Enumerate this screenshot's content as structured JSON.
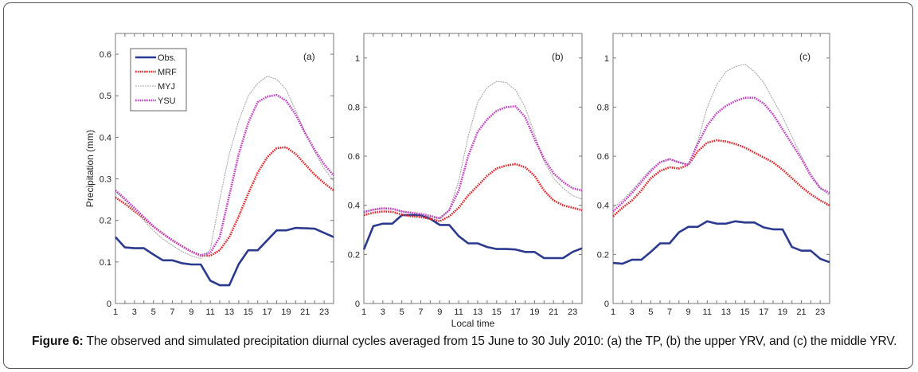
{
  "caption": {
    "label": "Figure 6:",
    "text": " The observed and simulated precipitation diurnal cycles averaged from 15 June to 30 July 2010: (a) the TP, (b) the upper YRV, and (c) the middle YRV."
  },
  "series_styles": {
    "Obs.": {
      "color": "#2b3a8f",
      "dash": "solid",
      "width": "thick"
    },
    "MRF": {
      "color": "#e0262b",
      "dash": "dotted",
      "width": "thick"
    },
    "MYJ": {
      "color": "#a8a8a8",
      "dash": "thin-dotted",
      "width": "thin"
    },
    "YSU": {
      "color": "#c040c0",
      "dash": "dotted",
      "width": "thick"
    }
  },
  "chart_data": [
    {
      "type": "line",
      "panel": "(a)",
      "title": "",
      "xlabel": "",
      "ylabel": "Precipitation (mm)",
      "xlim": [
        1,
        24
      ],
      "ylim": [
        0,
        0.65
      ],
      "xticks": [
        1,
        3,
        5,
        7,
        9,
        11,
        13,
        15,
        17,
        19,
        21,
        23
      ],
      "yticks": [
        0,
        0.1,
        0.2,
        0.3,
        0.4,
        0.5,
        0.6
      ],
      "ytick_labels": [
        "0",
        "0.1",
        "0.2",
        "0.3",
        "0.4",
        "0.5",
        "0.6"
      ],
      "legend": {
        "entries": [
          "Obs.",
          "MRF",
          "MYJ",
          "YSU"
        ],
        "position": "top-left"
      },
      "x": [
        1,
        2,
        3,
        4,
        5,
        6,
        7,
        8,
        9,
        10,
        11,
        12,
        13,
        14,
        15,
        16,
        17,
        18,
        19,
        20,
        21,
        22,
        23,
        24
      ],
      "series": [
        {
          "name": "Obs.",
          "values": [
            0.16,
            0.135,
            0.133,
            0.133,
            0.118,
            0.104,
            0.104,
            0.097,
            0.094,
            0.094,
            0.055,
            0.044,
            0.044,
            0.095,
            0.128,
            0.128,
            0.152,
            0.176,
            0.176,
            0.182,
            0.181,
            0.18,
            0.17,
            0.16
          ]
        },
        {
          "name": "MRF",
          "values": [
            0.255,
            0.24,
            0.222,
            0.205,
            0.185,
            0.168,
            0.152,
            0.138,
            0.125,
            0.115,
            0.115,
            0.128,
            0.16,
            0.21,
            0.265,
            0.315,
            0.352,
            0.374,
            0.376,
            0.36,
            0.335,
            0.31,
            0.29,
            0.272
          ]
        },
        {
          "name": "MYJ",
          "values": [
            0.27,
            0.248,
            0.225,
            0.2,
            0.175,
            0.155,
            0.14,
            0.125,
            0.115,
            0.108,
            0.13,
            0.25,
            0.36,
            0.44,
            0.5,
            0.53,
            0.547,
            0.54,
            0.515,
            0.465,
            0.41,
            0.365,
            0.325,
            0.295
          ]
        },
        {
          "name": "YSU",
          "values": [
            0.272,
            0.252,
            0.23,
            0.208,
            0.186,
            0.168,
            0.152,
            0.138,
            0.125,
            0.116,
            0.122,
            0.16,
            0.26,
            0.36,
            0.435,
            0.485,
            0.498,
            0.502,
            0.488,
            0.455,
            0.41,
            0.37,
            0.335,
            0.308
          ]
        }
      ]
    },
    {
      "type": "line",
      "panel": "(b)",
      "title": "",
      "xlabel": "Local time",
      "ylabel": "",
      "xlim": [
        1,
        24
      ],
      "ylim": [
        0,
        1.1
      ],
      "xticks": [
        1,
        3,
        5,
        7,
        9,
        11,
        13,
        15,
        17,
        19,
        21,
        23
      ],
      "yticks": [
        0,
        0.2,
        0.4,
        0.6,
        0.8,
        1
      ],
      "ytick_labels": [
        "0",
        "0.2",
        "0.4",
        "0.6",
        "0.8",
        "1"
      ],
      "x": [
        1,
        2,
        3,
        4,
        5,
        6,
        7,
        8,
        9,
        10,
        11,
        12,
        13,
        14,
        15,
        16,
        17,
        18,
        19,
        20,
        21,
        22,
        23,
        24
      ],
      "series": [
        {
          "name": "Obs.",
          "values": [
            0.22,
            0.315,
            0.325,
            0.325,
            0.36,
            0.36,
            0.36,
            0.345,
            0.32,
            0.32,
            0.275,
            0.245,
            0.245,
            0.23,
            0.222,
            0.222,
            0.22,
            0.21,
            0.21,
            0.185,
            0.185,
            0.185,
            0.21,
            0.225
          ]
        },
        {
          "name": "MRF",
          "values": [
            0.36,
            0.37,
            0.375,
            0.373,
            0.362,
            0.355,
            0.352,
            0.345,
            0.335,
            0.355,
            0.39,
            0.44,
            0.48,
            0.52,
            0.55,
            0.562,
            0.568,
            0.555,
            0.52,
            0.46,
            0.42,
            0.4,
            0.39,
            0.38
          ]
        },
        {
          "name": "MYJ",
          "values": [
            0.375,
            0.383,
            0.386,
            0.383,
            0.375,
            0.368,
            0.362,
            0.353,
            0.345,
            0.38,
            0.5,
            0.68,
            0.82,
            0.88,
            0.905,
            0.9,
            0.87,
            0.8,
            0.69,
            0.58,
            0.51,
            0.47,
            0.44,
            0.425
          ]
        },
        {
          "name": "YSU",
          "values": [
            0.372,
            0.382,
            0.388,
            0.386,
            0.375,
            0.37,
            0.365,
            0.357,
            0.347,
            0.38,
            0.46,
            0.6,
            0.7,
            0.75,
            0.785,
            0.8,
            0.803,
            0.76,
            0.67,
            0.59,
            0.53,
            0.495,
            0.47,
            0.46
          ]
        }
      ]
    },
    {
      "type": "line",
      "panel": "(c)",
      "title": "",
      "xlabel": "",
      "ylabel": "",
      "xlim": [
        1,
        24
      ],
      "ylim": [
        0,
        1.1
      ],
      "xticks": [
        1,
        3,
        5,
        7,
        9,
        11,
        13,
        15,
        17,
        19,
        21,
        23
      ],
      "yticks": [
        0,
        0.2,
        0.4,
        0.6,
        0.8,
        1
      ],
      "ytick_labels": [
        "0",
        "0.2",
        "0.4",
        "0.6",
        "0.8",
        "1"
      ],
      "x": [
        1,
        2,
        3,
        4,
        5,
        6,
        7,
        8,
        9,
        10,
        11,
        12,
        13,
        14,
        15,
        16,
        17,
        18,
        19,
        20,
        21,
        22,
        23,
        24
      ],
      "series": [
        {
          "name": "Obs.",
          "values": [
            0.165,
            0.162,
            0.178,
            0.178,
            0.21,
            0.245,
            0.245,
            0.29,
            0.312,
            0.312,
            0.335,
            0.325,
            0.325,
            0.335,
            0.33,
            0.33,
            0.31,
            0.302,
            0.302,
            0.23,
            0.215,
            0.215,
            0.182,
            0.168
          ]
        },
        {
          "name": "MRF",
          "values": [
            0.355,
            0.39,
            0.42,
            0.46,
            0.51,
            0.54,
            0.555,
            0.55,
            0.565,
            0.62,
            0.655,
            0.665,
            0.66,
            0.65,
            0.635,
            0.615,
            0.595,
            0.575,
            0.545,
            0.51,
            0.475,
            0.445,
            0.42,
            0.4
          ]
        },
        {
          "name": "MYJ",
          "values": [
            0.39,
            0.42,
            0.46,
            0.505,
            0.545,
            0.578,
            0.59,
            0.575,
            0.565,
            0.66,
            0.8,
            0.89,
            0.945,
            0.965,
            0.975,
            0.945,
            0.9,
            0.83,
            0.76,
            0.68,
            0.6,
            0.53,
            0.47,
            0.44
          ]
        },
        {
          "name": "YSU",
          "values": [
            0.375,
            0.41,
            0.45,
            0.495,
            0.54,
            0.575,
            0.588,
            0.575,
            0.565,
            0.65,
            0.725,
            0.775,
            0.805,
            0.825,
            0.838,
            0.838,
            0.815,
            0.77,
            0.71,
            0.65,
            0.59,
            0.52,
            0.47,
            0.45
          ]
        }
      ]
    }
  ]
}
